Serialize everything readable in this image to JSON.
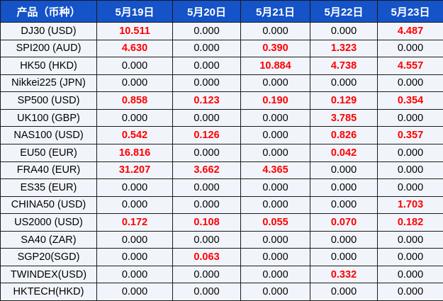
{
  "chart_data": {
    "type": "table",
    "columns": [
      "产品（币种）",
      "5月19日",
      "5月20日",
      "5月21日",
      "5月22日",
      "5月23日"
    ],
    "rows": [
      {
        "product": "DJ30 (USD)",
        "values": [
          "10.511",
          "0.000",
          "0.000",
          "0.000",
          "4.487"
        ],
        "red": [
          true,
          false,
          false,
          false,
          true
        ]
      },
      {
        "product": "SPI200 (AUD)",
        "values": [
          "4.630",
          "0.000",
          "0.390",
          "1.323",
          "0.000"
        ],
        "red": [
          true,
          false,
          true,
          true,
          false
        ]
      },
      {
        "product": "HK50 (HKD)",
        "values": [
          "0.000",
          "0.000",
          "10.884",
          "4.738",
          "4.557"
        ],
        "red": [
          false,
          false,
          true,
          true,
          true
        ]
      },
      {
        "product": "Nikkei225 (JPN)",
        "values": [
          "0.000",
          "0.000",
          "0.000",
          "0.000",
          "0.000"
        ],
        "red": [
          false,
          false,
          false,
          false,
          false
        ]
      },
      {
        "product": "SP500 (USD)",
        "values": [
          "0.858",
          "0.123",
          "0.190",
          "0.129",
          "0.354"
        ],
        "red": [
          true,
          true,
          true,
          true,
          true
        ]
      },
      {
        "product": "UK100 (GBP)",
        "values": [
          "0.000",
          "0.000",
          "0.000",
          "3.785",
          "0.000"
        ],
        "red": [
          false,
          false,
          false,
          true,
          false
        ]
      },
      {
        "product": "NAS100 (USD)",
        "values": [
          "0.542",
          "0.126",
          "0.000",
          "0.826",
          "0.357"
        ],
        "red": [
          true,
          true,
          false,
          true,
          true
        ]
      },
      {
        "product": "EU50 (EUR)",
        "values": [
          "16.816",
          "0.000",
          "0.000",
          "0.042",
          "0.000"
        ],
        "red": [
          true,
          false,
          false,
          true,
          false
        ]
      },
      {
        "product": "FRA40 (EUR)",
        "values": [
          "31.207",
          "3.662",
          "4.365",
          "0.000",
          "0.000"
        ],
        "red": [
          true,
          true,
          true,
          false,
          false
        ]
      },
      {
        "product": "ES35 (EUR)",
        "values": [
          "0.000",
          "0.000",
          "0.000",
          "0.000",
          "0.000"
        ],
        "red": [
          false,
          false,
          false,
          false,
          false
        ]
      },
      {
        "product": "CHINA50 (USD)",
        "values": [
          "0.000",
          "0.000",
          "0.000",
          "0.000",
          "1.703"
        ],
        "red": [
          false,
          false,
          false,
          false,
          true
        ]
      },
      {
        "product": "US2000 (USD)",
        "values": [
          "0.172",
          "0.108",
          "0.055",
          "0.070",
          "0.182"
        ],
        "red": [
          true,
          true,
          true,
          true,
          true
        ]
      },
      {
        "product": "SA40 (ZAR)",
        "values": [
          "0.000",
          "0.000",
          "0.000",
          "0.000",
          "0.000"
        ],
        "red": [
          false,
          false,
          false,
          false,
          false
        ]
      },
      {
        "product": "SGP20(SGD)",
        "values": [
          "0.000",
          "0.063",
          "0.000",
          "0.000",
          "0.000"
        ],
        "red": [
          false,
          true,
          false,
          false,
          false
        ]
      },
      {
        "product": "TWINDEX(USD)",
        "values": [
          "0.000",
          "0.000",
          "0.000",
          "0.332",
          "0.000"
        ],
        "red": [
          false,
          false,
          false,
          true,
          false
        ]
      },
      {
        "product": "HKTECH(HKD)",
        "values": [
          "0.000",
          "0.000",
          "0.000",
          "0.000",
          "0.000"
        ],
        "red": [
          false,
          false,
          false,
          false,
          false
        ]
      }
    ]
  },
  "colors": {
    "header_bg": "#1453C8",
    "header_text": "#FFFFFF",
    "cell_bg": "#F1F5FB",
    "border": "#1A1A1A",
    "text": "#000000",
    "highlight": "#FF0000"
  }
}
